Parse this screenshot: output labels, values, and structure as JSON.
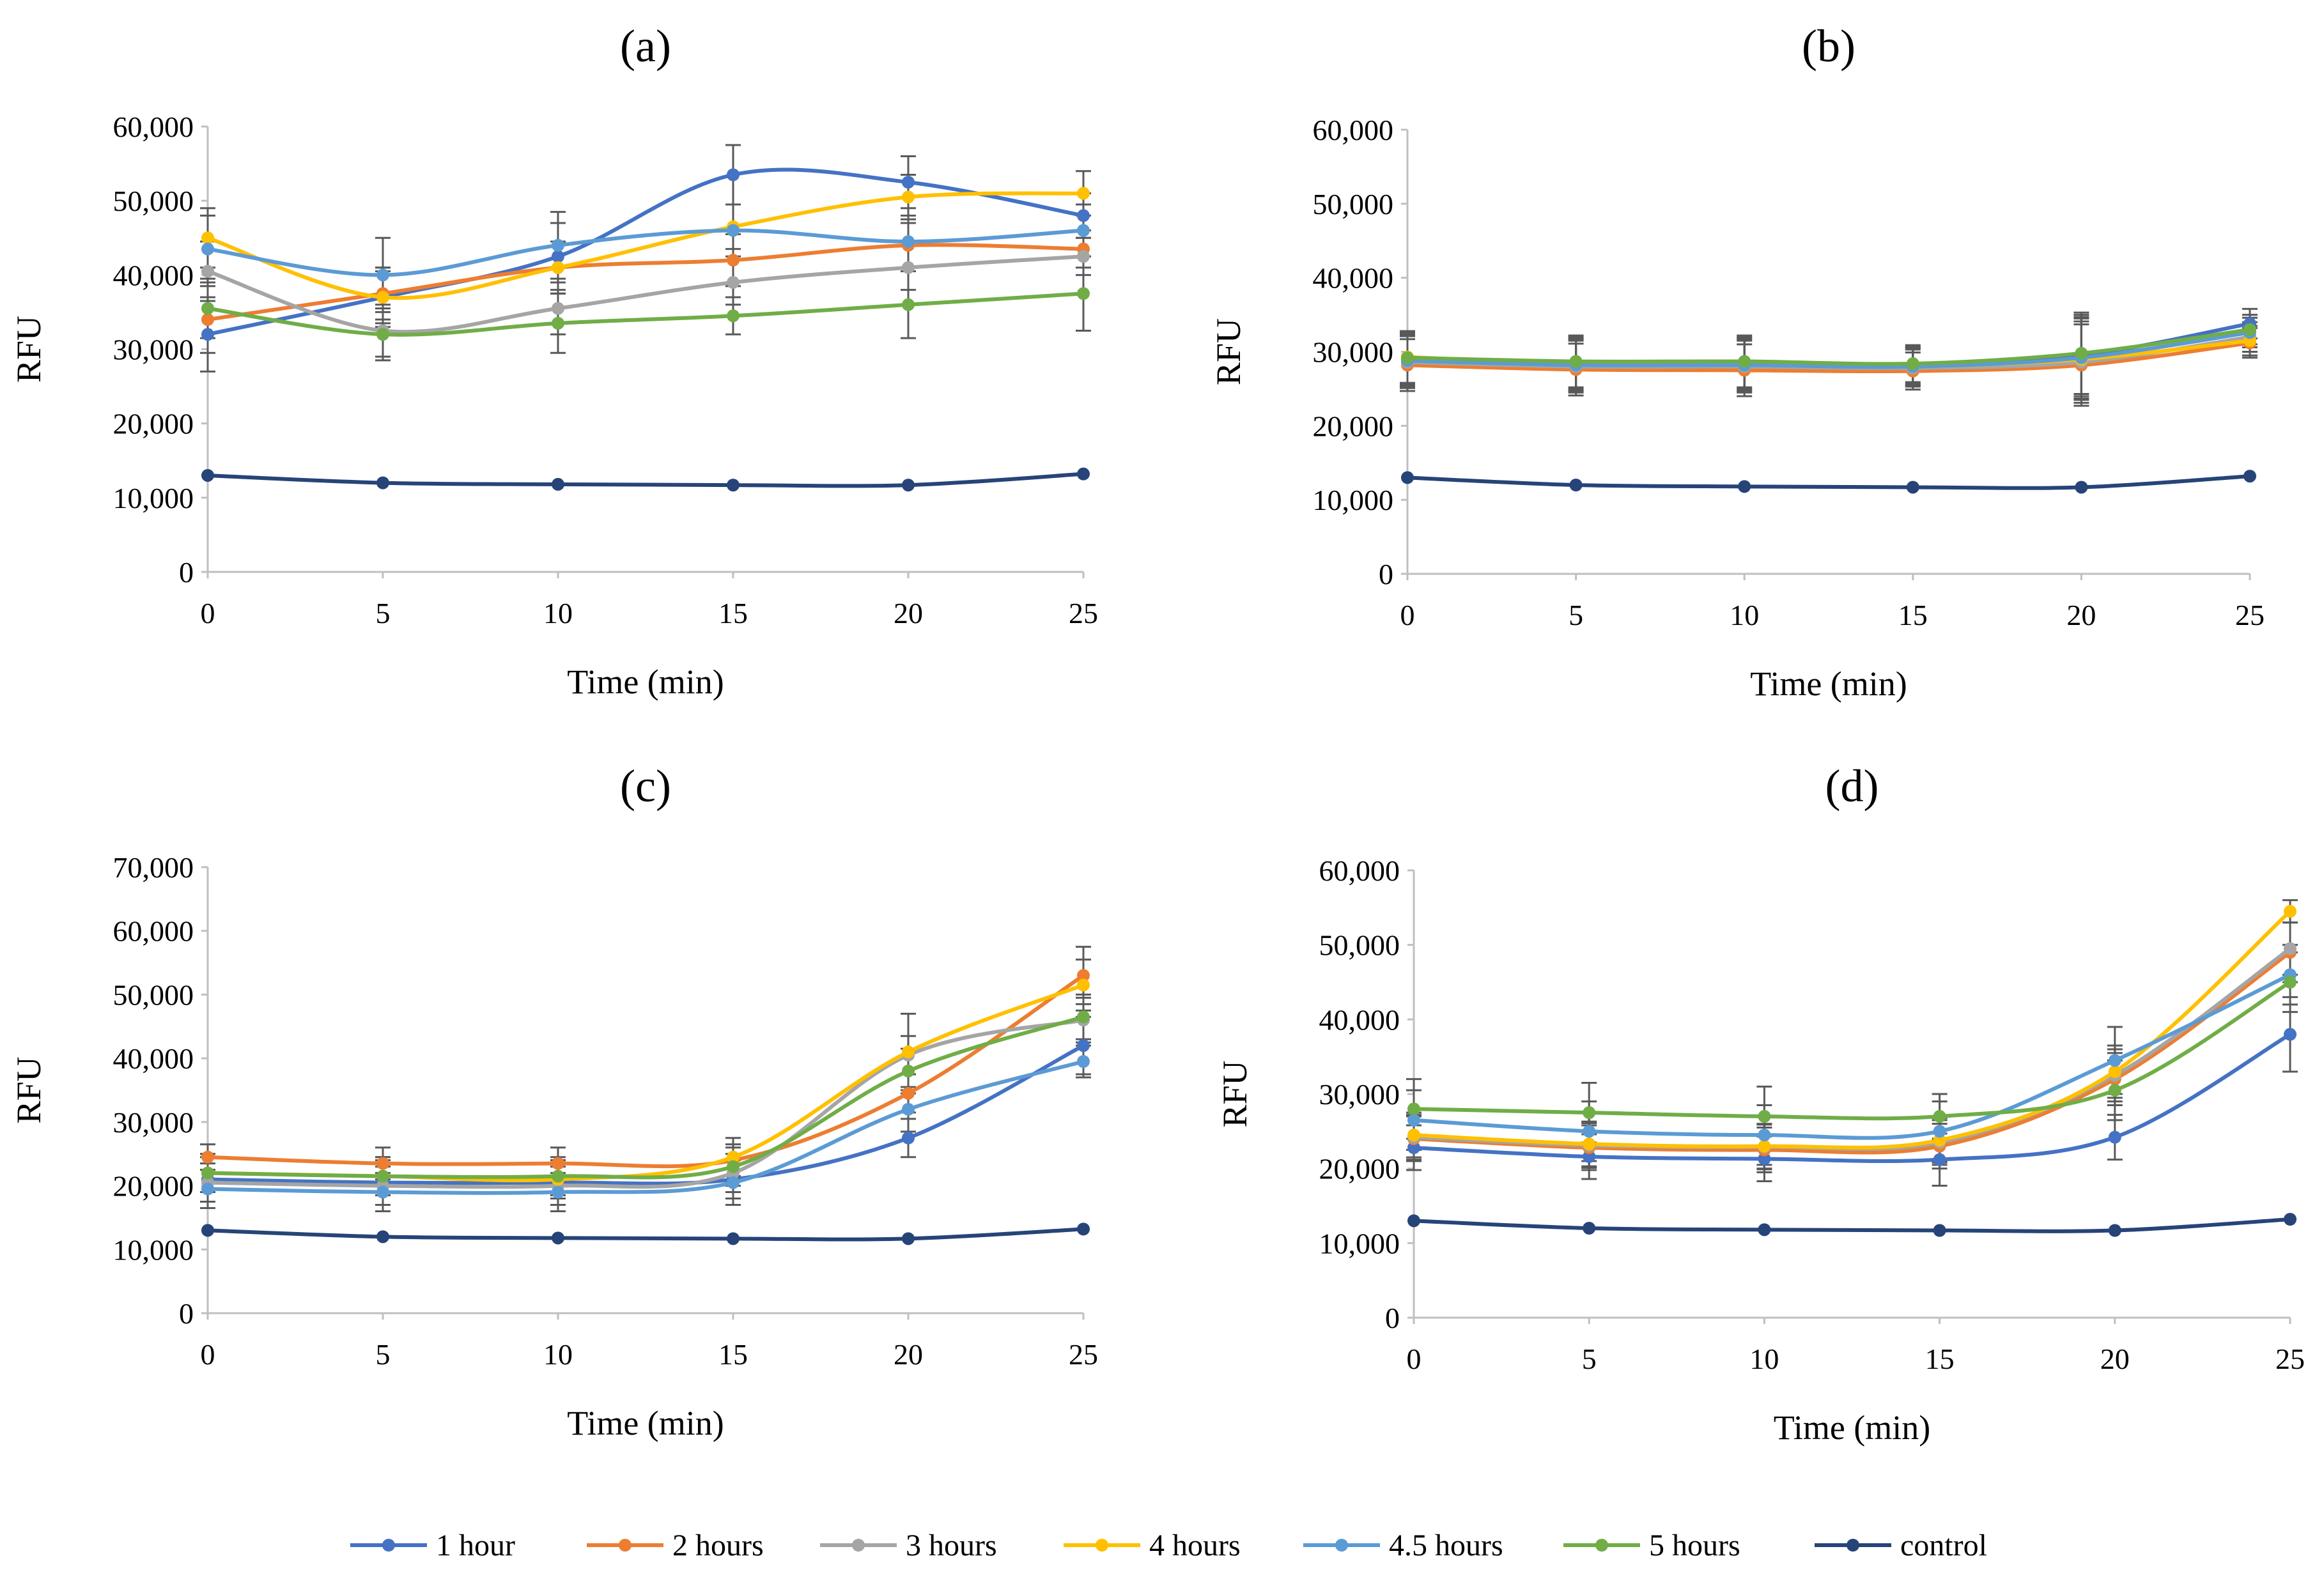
{
  "legend": {
    "items": [
      {
        "label": "1 hour",
        "color": "#4472C4"
      },
      {
        "label": "2 hours",
        "color": "#ED7D31"
      },
      {
        "label": "3 hours",
        "color": "#A5A5A5"
      },
      {
        "label": "4 hours",
        "color": "#FFC000"
      },
      {
        "label": "4.5 hours",
        "color": "#5B9BD5"
      },
      {
        "label": "5 hours",
        "color": "#70AD47"
      },
      {
        "label": "control",
        "color": "#264478"
      }
    ]
  },
  "chart_data": [
    {
      "type": "line",
      "title": "(a)",
      "xlabel": "Time (min)",
      "ylabel": "RFU",
      "x": [
        0,
        5,
        10,
        15,
        20,
        25
      ],
      "ylim": [
        0,
        60000
      ],
      "yticks": [
        0,
        10000,
        20000,
        30000,
        40000,
        50000,
        60000
      ],
      "ytick_labels": [
        "0",
        "10,000",
        "20,000",
        "30,000",
        "40,000",
        "50,000",
        "60,000"
      ],
      "series": [
        {
          "name": "1 hour",
          "values": [
            32000,
            37000,
            42500,
            53500,
            52500,
            48000
          ],
          "errors": [
            5000,
            4000,
            4500,
            4000,
            3500,
            3000
          ]
        },
        {
          "name": "2 hours",
          "values": [
            34000,
            37500,
            41000,
            42000,
            44000,
            43500
          ],
          "errors": [
            4500,
            3500,
            3500,
            3500,
            3000,
            2500
          ]
        },
        {
          "name": "3 hours",
          "values": [
            40500,
            32500,
            35500,
            39000,
            41000,
            42500
          ],
          "errors": [
            4000,
            3500,
            3500,
            3000,
            3000,
            2500
          ]
        },
        {
          "name": "4 hours",
          "values": [
            45000,
            37000,
            41000,
            46500,
            50500,
            51000
          ],
          "errors": [
            4000,
            3500,
            3500,
            3000,
            3000,
            3000
          ]
        },
        {
          "name": "4.5 hours",
          "values": [
            43500,
            40000,
            44000,
            46000,
            44500,
            46000
          ],
          "errors": [
            4500,
            5000,
            4500,
            3500,
            3500,
            3500
          ]
        },
        {
          "name": "5 hours",
          "values": [
            35500,
            32000,
            33500,
            34500,
            36000,
            37500
          ],
          "errors": [
            4000,
            3500,
            4000,
            2500,
            4500,
            5000
          ]
        },
        {
          "name": "control",
          "values": [
            13000,
            12000,
            11800,
            11700,
            11700,
            13200
          ],
          "errors": [
            300,
            300,
            300,
            300,
            300,
            300
          ]
        }
      ]
    },
    {
      "type": "line",
      "title": "(b)",
      "xlabel": "Time (min)",
      "ylabel": "RFU",
      "x": [
        0,
        5,
        10,
        15,
        20,
        25
      ],
      "ylim": [
        0,
        60000
      ],
      "yticks": [
        0,
        10000,
        20000,
        30000,
        40000,
        50000,
        60000
      ],
      "ytick_labels": [
        "0",
        "10,000",
        "20,000",
        "30,000",
        "40,000",
        "50,000",
        "60,000"
      ],
      "series": [
        {
          "name": "1 hour",
          "values": [
            29000,
            28500,
            28500,
            28200,
            29500,
            33800
          ],
          "errors": [
            3500,
            3500,
            3500,
            2500,
            5500,
            2000
          ]
        },
        {
          "name": "2 hours",
          "values": [
            28200,
            27600,
            27500,
            27400,
            28200,
            31200
          ],
          "errors": [
            3500,
            3500,
            3500,
            2500,
            5500,
            2000
          ]
        },
        {
          "name": "3 hours",
          "values": [
            28600,
            28000,
            28000,
            27800,
            28600,
            32000
          ],
          "errors": [
            3500,
            3500,
            3500,
            2500,
            5500,
            2000
          ]
        },
        {
          "name": "4 hours",
          "values": [
            29300,
            28300,
            28300,
            28000,
            29000,
            31500
          ],
          "errors": [
            3500,
            3500,
            3500,
            2500,
            5500,
            2000
          ]
        },
        {
          "name": "4.5 hours",
          "values": [
            28800,
            28200,
            28200,
            28000,
            29200,
            32600
          ],
          "errors": [
            3500,
            3500,
            3500,
            2500,
            5500,
            2000
          ]
        },
        {
          "name": "5 hours",
          "values": [
            29200,
            28700,
            28700,
            28400,
            29800,
            33000
          ],
          "errors": [
            3500,
            3500,
            3500,
            2500,
            5500,
            2000
          ]
        },
        {
          "name": "control",
          "values": [
            13000,
            12000,
            11800,
            11700,
            11700,
            13200
          ],
          "errors": [
            300,
            300,
            300,
            300,
            300,
            300
          ]
        }
      ]
    },
    {
      "type": "line",
      "title": "(c)",
      "xlabel": "Time (min)",
      "ylabel": "RFU",
      "x": [
        0,
        5,
        10,
        15,
        20,
        25
      ],
      "ylim": [
        0,
        70000
      ],
      "yticks": [
        0,
        10000,
        20000,
        30000,
        40000,
        50000,
        60000,
        70000
      ],
      "ytick_labels": [
        "0",
        "10,000",
        "20,000",
        "30,000",
        "40,000",
        "50,000",
        "60,000",
        "70,000"
      ],
      "series": [
        {
          "name": "1 hour",
          "values": [
            21000,
            20500,
            20500,
            21000,
            27500,
            42000
          ],
          "errors": [
            3500,
            3500,
            3500,
            3000,
            3000,
            4500
          ]
        },
        {
          "name": "2 hours",
          "values": [
            24500,
            23500,
            23500,
            24000,
            34500,
            53000
          ],
          "errors": [
            2000,
            2500,
            2500,
            2500,
            3000,
            4500
          ]
        },
        {
          "name": "3 hours",
          "values": [
            20500,
            20000,
            20000,
            22000,
            40500,
            46000
          ],
          "errors": [
            3000,
            3000,
            3000,
            3000,
            3000,
            3500
          ]
        },
        {
          "name": "4 hours",
          "values": [
            22000,
            21500,
            21000,
            24500,
            41000,
            51500
          ],
          "errors": [
            3000,
            3000,
            3000,
            3000,
            6000,
            4000
          ]
        },
        {
          "name": "4.5 hours",
          "values": [
            19500,
            19000,
            19000,
            20500,
            32000,
            39500
          ],
          "errors": [
            3000,
            3000,
            3000,
            3500,
            3500,
            2500
          ]
        },
        {
          "name": "5 hours",
          "values": [
            22000,
            21500,
            21500,
            23000,
            38000,
            46500
          ],
          "errors": [
            3000,
            3000,
            3000,
            3000,
            3500,
            3500
          ]
        },
        {
          "name": "control",
          "values": [
            13000,
            12000,
            11800,
            11700,
            11700,
            13200
          ],
          "errors": [
            300,
            300,
            300,
            300,
            300,
            300
          ]
        }
      ]
    },
    {
      "type": "line",
      "title": "(d)",
      "xlabel": "Time (min)",
      "ylabel": "RFU",
      "x": [
        0,
        5,
        10,
        15,
        20,
        25
      ],
      "ylim": [
        0,
        60000
      ],
      "yticks": [
        0,
        10000,
        20000,
        30000,
        40000,
        50000,
        60000
      ],
      "ytick_labels": [
        "0",
        "10,000",
        "20,000",
        "30,000",
        "40,000",
        "50,000",
        "60,000"
      ],
      "series": [
        {
          "name": "1 hour",
          "values": [
            22800,
            21600,
            21300,
            21200,
            24200,
            38000
          ],
          "errors": [
            3000,
            3000,
            3000,
            3500,
            3000,
            5000
          ]
        },
        {
          "name": "2 hours",
          "values": [
            24000,
            22800,
            22500,
            23000,
            32000,
            49000
          ],
          "errors": [
            3000,
            3000,
            3000,
            3000,
            3500,
            4000
          ]
        },
        {
          "name": "3 hours",
          "values": [
            24200,
            23100,
            22900,
            23500,
            32500,
            49500
          ],
          "errors": [
            3000,
            3000,
            3000,
            3000,
            3500,
            3500
          ]
        },
        {
          "name": "4 hours",
          "values": [
            24500,
            23300,
            23000,
            23800,
            33000,
            54500
          ],
          "errors": [
            3000,
            3000,
            3000,
            3000,
            3500,
            1500
          ]
        },
        {
          "name": "4.5 hours",
          "values": [
            26500,
            25000,
            24500,
            25000,
            34500,
            46000
          ],
          "errors": [
            4000,
            4000,
            4000,
            4000,
            4500,
            4000
          ]
        },
        {
          "name": "5 hours",
          "values": [
            28000,
            27500,
            27000,
            27000,
            30500,
            45000
          ],
          "errors": [
            4000,
            4000,
            4000,
            3000,
            4000,
            4000
          ]
        },
        {
          "name": "control",
          "values": [
            13000,
            12000,
            11800,
            11700,
            11700,
            13200
          ],
          "errors": [
            300,
            300,
            300,
            300,
            300,
            300
          ]
        }
      ]
    }
  ]
}
